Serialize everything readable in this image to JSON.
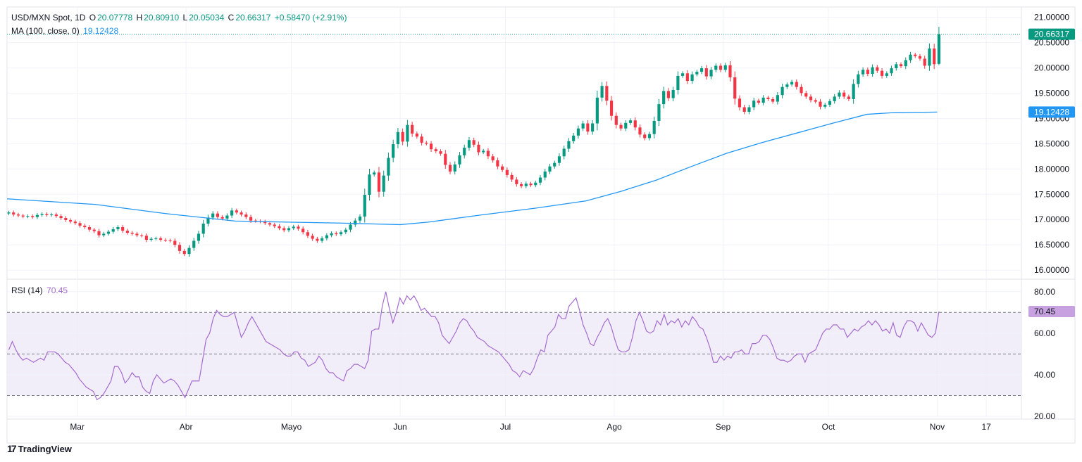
{
  "header": {
    "symbol": "USD/MXN Spot, 1D",
    "o_label": "O",
    "o_value": "20.07778",
    "h_label": "H",
    "h_value": "20.80910",
    "l_label": "L",
    "l_value": "20.05034",
    "c_label": "C",
    "c_value": "20.66317",
    "change": "+0.58470 (+2.91%)",
    "ma_label": "MA (100, close, 0)",
    "ma_value": "19.12428",
    "rsi_label": "RSI (14)",
    "rsi_value": "70.45"
  },
  "colors": {
    "up": "#089981",
    "down": "#f23645",
    "ma": "#2196f3",
    "rsi": "#a46ccf",
    "rsi_band": "#ede7f6",
    "grid": "#f0f3fa",
    "text": "#131722"
  },
  "branding": {
    "logo_text": "TradingView"
  },
  "chart_data": [
    {
      "type": "candlestick",
      "title": "USD/MXN Spot, 1D",
      "ylim": [
        15.85,
        21.2
      ],
      "y_ticks": [
        "16.00000",
        "16.50000",
        "17.00000",
        "17.50000",
        "18.00000",
        "18.50000",
        "19.00000",
        "19.50000",
        "20.00000",
        "20.50000",
        "21.00000"
      ],
      "y_tick_values": [
        16,
        16.5,
        17,
        17.5,
        18,
        18.5,
        19,
        19.5,
        20,
        20.5,
        21
      ],
      "x_ticks": [
        "Mar",
        "Abr",
        "Mayo",
        "Jun",
        "Jul",
        "Ago",
        "Sep",
        "Oct",
        "Nov",
        "17"
      ],
      "x_tick_days": [
        20,
        51,
        81,
        112,
        142,
        173,
        204,
        234,
        265,
        279
      ],
      "x_range_days": [
        0,
        289
      ],
      "last_price": "20.66317",
      "last_price_value": 20.66317,
      "closes": [
        17.14,
        17.1,
        17.08,
        17.06,
        17.07,
        17.05,
        17.09,
        17.11,
        17.09,
        17.1,
        17.07,
        17.03,
        16.99,
        16.96,
        16.93,
        16.88,
        16.85,
        16.8,
        16.77,
        16.69,
        16.72,
        16.76,
        16.81,
        16.85,
        16.78,
        16.74,
        16.72,
        16.69,
        16.68,
        16.6,
        16.62,
        16.63,
        16.6,
        16.59,
        16.58,
        16.5,
        16.38,
        16.32,
        16.44,
        16.58,
        16.72,
        16.92,
        17.04,
        17.12,
        17.05,
        17.02,
        17.08,
        17.18,
        17.14,
        17.1,
        17.05,
        16.98,
        16.97,
        16.96,
        16.93,
        16.9,
        16.87,
        16.83,
        16.79,
        16.83,
        16.86,
        16.82,
        16.75,
        16.68,
        16.62,
        16.58,
        16.63,
        16.69,
        16.73,
        16.71,
        16.75,
        16.8,
        16.9,
        16.98,
        17.06,
        17.49,
        17.89,
        17.93,
        17.55,
        17.87,
        18.22,
        18.49,
        18.73,
        18.54,
        18.87,
        18.7,
        18.64,
        18.52,
        18.5,
        18.39,
        18.35,
        18.3,
        18.08,
        17.95,
        18.09,
        18.27,
        18.42,
        18.57,
        18.48,
        18.33,
        18.36,
        18.25,
        18.17,
        18.05,
        17.98,
        17.88,
        17.79,
        17.7,
        17.66,
        17.71,
        17.68,
        17.73,
        17.83,
        17.95,
        18.05,
        18.12,
        18.25,
        18.4,
        18.55,
        18.66,
        18.8,
        18.9,
        18.74,
        18.9,
        19.41,
        19.64,
        19.35,
        19.05,
        18.87,
        18.8,
        18.91,
        18.96,
        18.82,
        18.68,
        18.61,
        18.69,
        18.95,
        19.28,
        19.54,
        19.4,
        19.56,
        19.84,
        19.89,
        19.74,
        19.87,
        19.92,
        19.99,
        19.83,
        19.96,
        20.04,
        19.96,
        20.05,
        19.81,
        19.39,
        19.22,
        19.13,
        19.22,
        19.35,
        19.31,
        19.41,
        19.38,
        19.33,
        19.46,
        19.62,
        19.67,
        19.72,
        19.62,
        19.5,
        19.43,
        19.36,
        19.33,
        19.23,
        19.27,
        19.34,
        19.43,
        19.51,
        19.43,
        19.38,
        19.68,
        19.87,
        19.96,
        19.88,
        20.01,
        19.94,
        19.84,
        19.89,
        19.99,
        20.07,
        20.03,
        20.15,
        20.26,
        20.23,
        20.18,
        20.04,
        20.38,
        20.07,
        20.66
      ],
      "ohlc_last": {
        "open": 20.07778,
        "high": 20.8091,
        "low": 20.05034,
        "close": 20.66317
      },
      "ma_series": {
        "name": "MA (100, close, 0)",
        "last_value": 19.12428,
        "start_value": 17.41,
        "points": [
          [
            0,
            17.41
          ],
          [
            25,
            17.3
          ],
          [
            45,
            17.12
          ],
          [
            65,
            16.97
          ],
          [
            80,
            16.95
          ],
          [
            95,
            16.93
          ],
          [
            112,
            16.9
          ],
          [
            120,
            16.95
          ],
          [
            135,
            17.09
          ],
          [
            150,
            17.22
          ],
          [
            165,
            17.37
          ],
          [
            175,
            17.56
          ],
          [
            185,
            17.78
          ],
          [
            195,
            18.05
          ],
          [
            205,
            18.31
          ],
          [
            215,
            18.52
          ],
          [
            225,
            18.71
          ],
          [
            235,
            18.9
          ],
          [
            245,
            19.08
          ],
          [
            252,
            19.11
          ],
          [
            265,
            19.12428
          ]
        ]
      }
    },
    {
      "type": "line",
      "title": "RSI (14)",
      "ylim": [
        20,
        85
      ],
      "y_ticks": [
        "20.00",
        "40.00",
        "60.00",
        "80.00"
      ],
      "y_tick_values": [
        20,
        40,
        60,
        80
      ],
      "band": [
        30,
        70
      ],
      "mid": 50,
      "last_value": 70.45,
      "series": [
        {
          "values": [
            52,
            56,
            52,
            49,
            47,
            48,
            47,
            46,
            47,
            48,
            47,
            51,
            51,
            51,
            50,
            48,
            46,
            45,
            43,
            41,
            38,
            36,
            34,
            33,
            32,
            28,
            29,
            31,
            34,
            37,
            44,
            44,
            41,
            36,
            38,
            41,
            39,
            39,
            34,
            32,
            31,
            37,
            40,
            38,
            36,
            37,
            38,
            37,
            35,
            32,
            29,
            33,
            37,
            37,
            37,
            47,
            57,
            60,
            67,
            71,
            69,
            68,
            68,
            69,
            70,
            64,
            58,
            61,
            65,
            68,
            65,
            62,
            59,
            56,
            55,
            54,
            53,
            52,
            50,
            49,
            49,
            51,
            51,
            48,
            47,
            44,
            45,
            46,
            49,
            47,
            43,
            41,
            41,
            39,
            38,
            37,
            42,
            43,
            45,
            45,
            44,
            43,
            47,
            61,
            62,
            62,
            73,
            80,
            72,
            65,
            70,
            77,
            74,
            78,
            76,
            78,
            75,
            71,
            72,
            70,
            68,
            68,
            65,
            59,
            57,
            55,
            58,
            61,
            65,
            67,
            66,
            63,
            61,
            58,
            57,
            56,
            54,
            53,
            52,
            51,
            49,
            47,
            45,
            42,
            41,
            39,
            42,
            41,
            40,
            43,
            48,
            52,
            51,
            59,
            61,
            63,
            69,
            67,
            67,
            73,
            75,
            77,
            71,
            64,
            60,
            55,
            54,
            58,
            61,
            65,
            67,
            63,
            57,
            52,
            51,
            51,
            52,
            58,
            66,
            70,
            66,
            61,
            60,
            61,
            66,
            64,
            69,
            64,
            66,
            65,
            67,
            63,
            66,
            64,
            68,
            66,
            63,
            62,
            58,
            53,
            46,
            46,
            49,
            47,
            49,
            48,
            51,
            51,
            52,
            50,
            50,
            55,
            55,
            56,
            59,
            59,
            57,
            53,
            48,
            47,
            47,
            46,
            47,
            49,
            50,
            50,
            46,
            50,
            51,
            52,
            56,
            60,
            62,
            62,
            64,
            64,
            62,
            62,
            58,
            60,
            62,
            61,
            63,
            64,
            66,
            64,
            66,
            64,
            61,
            62,
            60,
            65,
            59,
            58,
            63,
            66,
            66,
            65,
            61,
            65,
            62,
            59,
            58,
            60,
            70.45
          ]
        }
      ]
    }
  ]
}
